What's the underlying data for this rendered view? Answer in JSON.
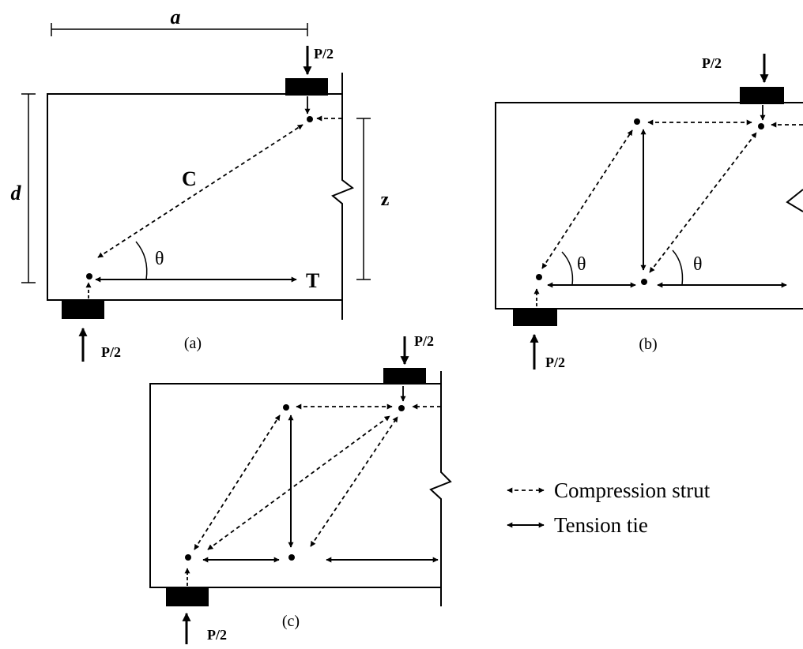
{
  "labels": {
    "span": "a",
    "depth": "d",
    "lever_arm": "z",
    "compression": "C",
    "tension": "T",
    "load": "P/2",
    "angle": "θ"
  },
  "panels": {
    "a": "(a)",
    "b": "(b)",
    "c": "(c)"
  },
  "legend": {
    "compression_strut": "Compression strut",
    "tension_tie": "Tension tie"
  }
}
